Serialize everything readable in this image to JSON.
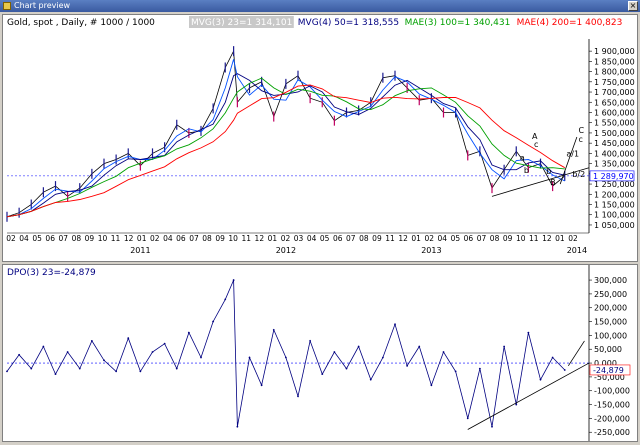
{
  "window": {
    "title": "Chart preview",
    "close_label": "×"
  },
  "colors": {
    "price": "#000000",
    "up_bar": "#1a1a90",
    "down_bar": "#c00060",
    "mvg3": "#0050ff",
    "mvg4": "#000080",
    "mae3": "#00a000",
    "mae4": "#ff0000",
    "dpo": "#000080",
    "hline": "#0000ff",
    "trend": "#000000"
  },
  "chart_data": [
    {
      "type": "line",
      "title": "Gold, spot , Daily, # 1000 / 1000",
      "legend": [
        {
          "label": "MVG(3) 23=1 314,101",
          "color": "#ffffff"
        },
        {
          "label": "MVG(4) 50=1 318,555",
          "color": "#000080"
        },
        {
          "label": "MAE(3) 100=1 340,431",
          "color": "#00a000"
        },
        {
          "label": "MAE(4) 200=1 400,823",
          "color": "#ff0000"
        }
      ],
      "legend_placement": "top",
      "ylim": [
        1040000,
        1930000
      ],
      "y_ticks": [
        "1 900,000",
        "1 850,000",
        "1 800,000",
        "1 750,000",
        "1 700,000",
        "1 650,000",
        "1 600,000",
        "1 550,000",
        "1 500,000",
        "1 450,000",
        "1 400,000",
        "1 350,000",
        "1 300,000",
        "1 250,000",
        "1 200,000",
        "1 150,000",
        "1 100,000",
        "1 050,000"
      ],
      "y_tick_values": [
        1900000,
        1850000,
        1800000,
        1750000,
        1700000,
        1650000,
        1600000,
        1550000,
        1500000,
        1450000,
        1400000,
        1350000,
        1300000,
        1250000,
        1200000,
        1150000,
        1100000,
        1050000
      ],
      "last_value_label": "1 289,970",
      "last_value": 1289970,
      "x_month_labels": [
        "02",
        "04",
        "05",
        "06",
        "07",
        "08",
        "09",
        "10",
        "11",
        "12",
        "01",
        "02",
        "04",
        "06",
        "07",
        "08",
        "09",
        "10",
        "11",
        "12",
        "01",
        "02",
        "03",
        "04",
        "05",
        "06",
        "07",
        "08",
        "09",
        "11",
        "12",
        "01",
        "02",
        "04",
        "05",
        "06",
        "07",
        "08",
        "09",
        "10",
        "11",
        "12",
        "01",
        "02"
      ],
      "x_year_labels": [
        "2011",
        "2012",
        "2013",
        "2014"
      ],
      "x_range": [
        "2010-02",
        "2014-02"
      ],
      "series": [
        {
          "name": "Gold spot",
          "points": [
            [
              "2010-02",
              1090000
            ],
            [
              "2010-03",
              1110000
            ],
            [
              "2010-04",
              1150000
            ],
            [
              "2010-05",
              1210000
            ],
            [
              "2010-06",
              1240000
            ],
            [
              "2010-07",
              1190000
            ],
            [
              "2010-08",
              1230000
            ],
            [
              "2010-09",
              1300000
            ],
            [
              "2010-10",
              1350000
            ],
            [
              "2010-11",
              1370000
            ],
            [
              "2010-12",
              1400000
            ],
            [
              "2011-01",
              1340000
            ],
            [
              "2011-02",
              1400000
            ],
            [
              "2011-03",
              1430000
            ],
            [
              "2011-04",
              1540000
            ],
            [
              "2011-05",
              1500000
            ],
            [
              "2011-06",
              1510000
            ],
            [
              "2011-07",
              1620000
            ],
            [
              "2011-08",
              1820000
            ],
            [
              "2011-08-22",
              1900000
            ],
            [
              "2011-09",
              1650000
            ],
            [
              "2011-10",
              1720000
            ],
            [
              "2011-11",
              1750000
            ],
            [
              "2011-12",
              1580000
            ],
            [
              "2012-01",
              1740000
            ],
            [
              "2012-02",
              1780000
            ],
            [
              "2012-03",
              1670000
            ],
            [
              "2012-04",
              1650000
            ],
            [
              "2012-05",
              1560000
            ],
            [
              "2012-06",
              1600000
            ],
            [
              "2012-07",
              1610000
            ],
            [
              "2012-08",
              1650000
            ],
            [
              "2012-09",
              1770000
            ],
            [
              "2012-10",
              1780000
            ],
            [
              "2012-11",
              1720000
            ],
            [
              "2012-12",
              1660000
            ],
            [
              "2013-01",
              1670000
            ],
            [
              "2013-02",
              1600000
            ],
            [
              "2013-03",
              1600000
            ],
            [
              "2013-04",
              1390000
            ],
            [
              "2013-05",
              1410000
            ],
            [
              "2013-06",
              1230000
            ],
            [
              "2013-07",
              1320000
            ],
            [
              "2013-08",
              1410000
            ],
            [
              "2013-09",
              1330000
            ],
            [
              "2013-10",
              1350000
            ],
            [
              "2013-11",
              1240000
            ],
            [
              "2013-12",
              1290000
            ]
          ]
        }
      ],
      "annotations": [
        {
          "text": "A"
        },
        {
          "text": "c"
        },
        {
          "text": "a"
        },
        {
          "text": "b"
        },
        {
          "text": "a/1"
        },
        {
          "text": "b"
        },
        {
          "text": "B"
        },
        {
          "text": "C"
        },
        {
          "text": "c"
        },
        {
          "text": "b/2"
        }
      ]
    },
    {
      "type": "line",
      "title": "DPO(3) 23=-24,879",
      "ylim": [
        -260000,
        340000
      ],
      "y_ticks": [
        "300,000",
        "250,000",
        "200,000",
        "150,000",
        "100,000",
        "50,000",
        "0,000",
        "-50,000",
        "-100,000",
        "-150,000",
        "-200,000",
        "-250,000"
      ],
      "y_tick_values": [
        300000,
        250000,
        200000,
        150000,
        100000,
        50000,
        0,
        -50000,
        -100000,
        -150000,
        -200000,
        -250000
      ],
      "last_value_label": "-24,879",
      "last_value": -24879,
      "series": [
        {
          "name": "DPO(3) 23",
          "points": [
            [
              "2010-02",
              -30000
            ],
            [
              "2010-03",
              30000
            ],
            [
              "2010-04",
              -20000
            ],
            [
              "2010-05",
              60000
            ],
            [
              "2010-06",
              -40000
            ],
            [
              "2010-07",
              40000
            ],
            [
              "2010-08",
              -20000
            ],
            [
              "2010-09",
              80000
            ],
            [
              "2010-10",
              10000
            ],
            [
              "2010-11",
              -30000
            ],
            [
              "2010-12",
              90000
            ],
            [
              "2011-01",
              -30000
            ],
            [
              "2011-02",
              40000
            ],
            [
              "2011-03",
              70000
            ],
            [
              "2011-04",
              -20000
            ],
            [
              "2011-05",
              110000
            ],
            [
              "2011-06",
              20000
            ],
            [
              "2011-07",
              150000
            ],
            [
              "2011-08",
              230000
            ],
            [
              "2011-08-22",
              300000
            ],
            [
              "2011-09",
              -230000
            ],
            [
              "2011-10",
              20000
            ],
            [
              "2011-11",
              -80000
            ],
            [
              "2011-12",
              120000
            ],
            [
              "2012-01",
              20000
            ],
            [
              "2012-02",
              -120000
            ],
            [
              "2012-03",
              80000
            ],
            [
              "2012-04",
              -40000
            ],
            [
              "2012-05",
              40000
            ],
            [
              "2012-06",
              -20000
            ],
            [
              "2012-07",
              60000
            ],
            [
              "2012-08",
              -60000
            ],
            [
              "2012-09",
              20000
            ],
            [
              "2012-10",
              140000
            ],
            [
              "2012-11",
              -10000
            ],
            [
              "2012-12",
              60000
            ],
            [
              "2013-01",
              -80000
            ],
            [
              "2013-02",
              40000
            ],
            [
              "2013-03",
              -30000
            ],
            [
              "2013-04",
              -200000
            ],
            [
              "2013-05",
              -20000
            ],
            [
              "2013-06",
              -230000
            ],
            [
              "2013-07",
              60000
            ],
            [
              "2013-08",
              -150000
            ],
            [
              "2013-09",
              110000
            ],
            [
              "2013-10",
              -60000
            ],
            [
              "2013-11",
              20000
            ],
            [
              "2013-12",
              -25000
            ]
          ]
        }
      ]
    }
  ]
}
